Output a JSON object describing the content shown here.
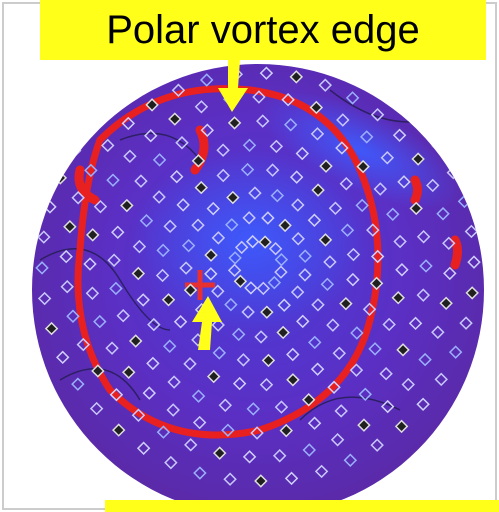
{
  "annotation": {
    "label": "Polar vortex edge"
  }
}
